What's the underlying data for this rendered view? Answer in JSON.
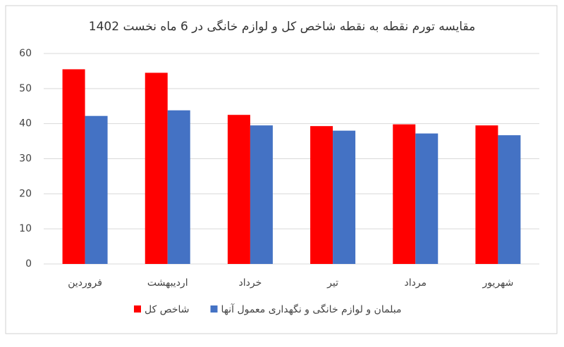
{
  "chart_data": {
    "type": "bar",
    "title": "مقایسه تورم نقطه به نقطه شاخص کل و لوازم خانگی در 6 ماه نخست 1402",
    "categories": [
      "فروردین",
      "اردیبهشت",
      "خرداد",
      "تیر",
      "مرداد",
      "شهریور"
    ],
    "series": [
      {
        "name": "شاخص کل",
        "color": "#ff0000",
        "values": [
          55.5,
          54.5,
          42.5,
          39.3,
          39.8,
          39.5
        ]
      },
      {
        "name": "مبلمان و لوازم خانگی و نگهداری معمول آنها",
        "color": "#4472c4",
        "values": [
          42.2,
          43.8,
          39.5,
          38,
          37.2,
          36.7
        ]
      }
    ],
    "ylim": [
      0,
      60
    ],
    "yticks": [
      0,
      10,
      20,
      30,
      40,
      50,
      60
    ],
    "grid": true
  }
}
